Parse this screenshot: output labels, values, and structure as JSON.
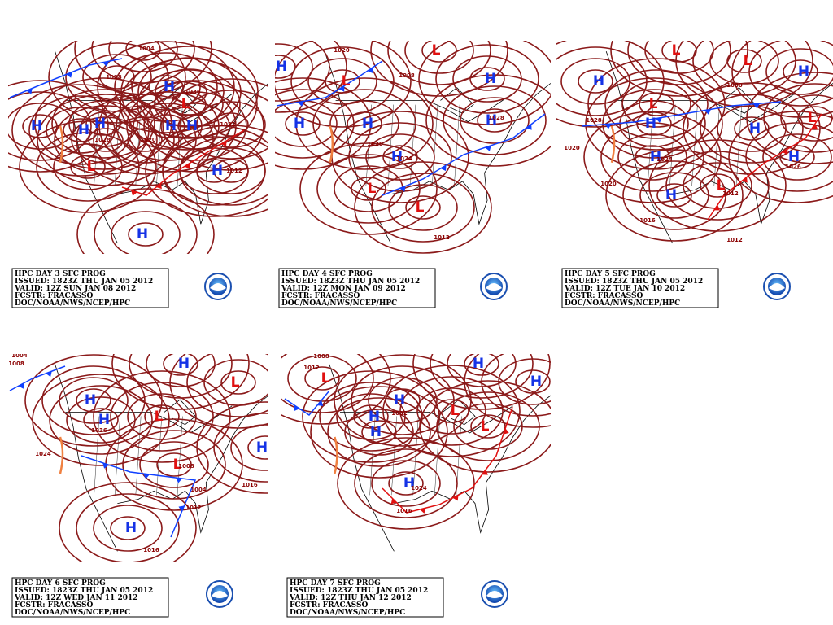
{
  "panels": [
    {
      "caption": [
        "HPC DAY 3 SFC PROG",
        "ISSUED: 1823Z THU JAN 05 2012",
        "VALID: 12Z SUN JAN 08 2012",
        "FCSTR: FRACASSO",
        "DOC/NOAA/NWS/NCEP/HPC"
      ],
      "centers": [
        "H",
        "H",
        "H",
        "H",
        "H",
        "H",
        "H",
        "H",
        "L",
        "L"
      ],
      "isobar_labels": [
        1004,
        1028,
        1036,
        1022,
        1012,
        1028,
        1020
      ]
    },
    {
      "caption": [
        "HPC DAY 4 SFC PROG",
        "ISSUED: 1823Z THU JAN 05 2012",
        "VALID: 12Z MON JAN 09 2012",
        "FCSTR: FRACASSO",
        "DOC/NOAA/NWS/NCEP/HPC"
      ],
      "centers": [
        "H",
        "H",
        "H",
        "H",
        "H",
        "H",
        "L",
        "L",
        "L",
        "L"
      ],
      "isobar_labels": [
        1008,
        1028,
        1024,
        1028,
        1012,
        1020
      ]
    },
    {
      "caption": [
        "HPC DAY 5 SFC PROG",
        "ISSUED: 1823Z THU JAN 05 2012",
        "VALID: 12Z TUE JAN 10 2012",
        "FCSTR: FRACASSO",
        "DOC/NOAA/NWS/NCEP/HPC"
      ],
      "centers": [
        "H",
        "H",
        "H",
        "H",
        "H",
        "H",
        "H",
        "L",
        "L",
        "L",
        "L",
        "L"
      ],
      "isobar_labels": [
        1004,
        1000,
        1028,
        1020,
        1020,
        1016,
        1024,
        1012,
        1012,
        1026
      ]
    },
    {
      "caption": [
        "HPC DAY 6 SFC PROG",
        "ISSUED: 1823Z THU JAN 05 2012",
        "VALID: 12Z WED JAN 11 2012",
        "FCSTR: FRACASSO",
        "DOC/NOAA/NWS/NCEP/HPC"
      ],
      "centers": [
        "H",
        "H",
        "H",
        "H",
        "H",
        "L",
        "L",
        "L"
      ],
      "isobar_labels": [
        1004,
        1008,
        1036,
        1024,
        1008,
        1004,
        1012,
        1016,
        1016
      ]
    },
    {
      "caption": [
        "HPC DAY 7 SFC PROG",
        "ISSUED: 1823Z THU JAN 05 2012",
        "VALID: 12Z THU JAN 12 2012",
        "FCSTR: FRACASSO",
        "DOC/NOAA/NWS/NCEP/HPC"
      ],
      "centers": [
        "H",
        "H",
        "H",
        "H",
        "H",
        "H",
        "L",
        "L",
        "L"
      ],
      "isobar_labels": [
        1008,
        1012,
        1032,
        1024,
        1016
      ]
    }
  ]
}
